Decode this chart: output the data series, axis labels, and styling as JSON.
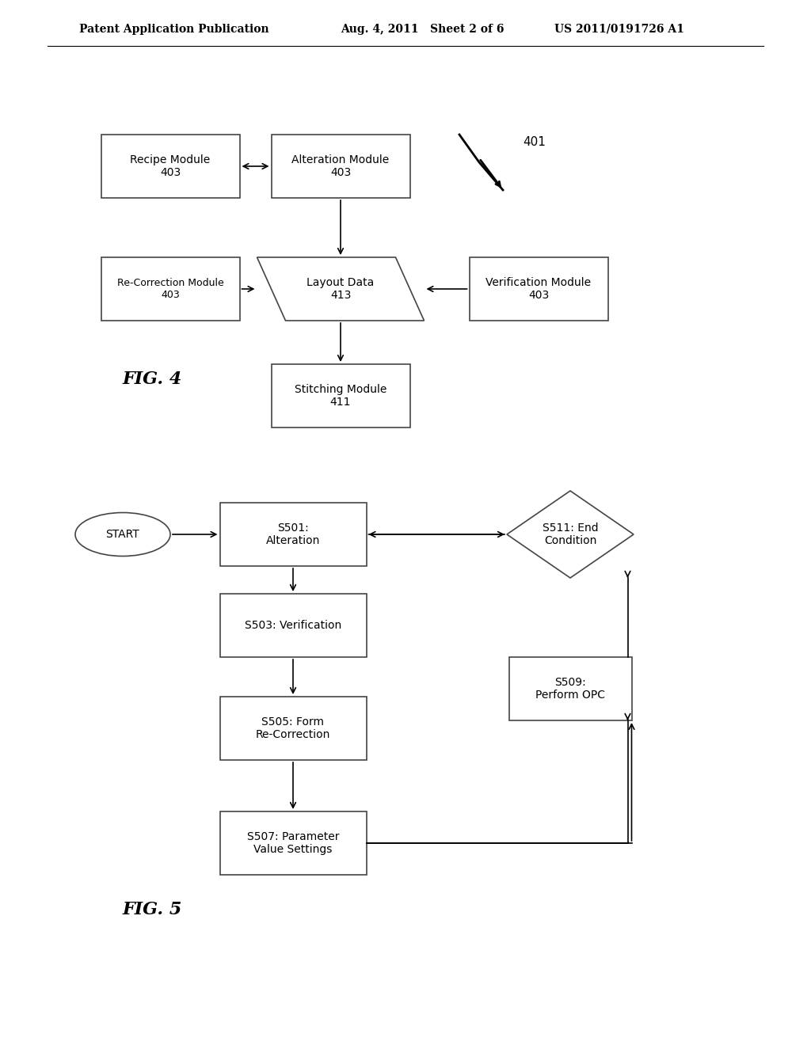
{
  "bg_color": "#ffffff",
  "header_left": "Patent Application Publication",
  "header_mid": "Aug. 4, 2011   Sheet 2 of 6",
  "header_right": "US 2011/0191726 A1",
  "fig4_label": "FIG. 4",
  "fig5_label": "FIG. 5",
  "edge_color": "#444444",
  "text_color": "#000000",
  "lw": 1.2
}
